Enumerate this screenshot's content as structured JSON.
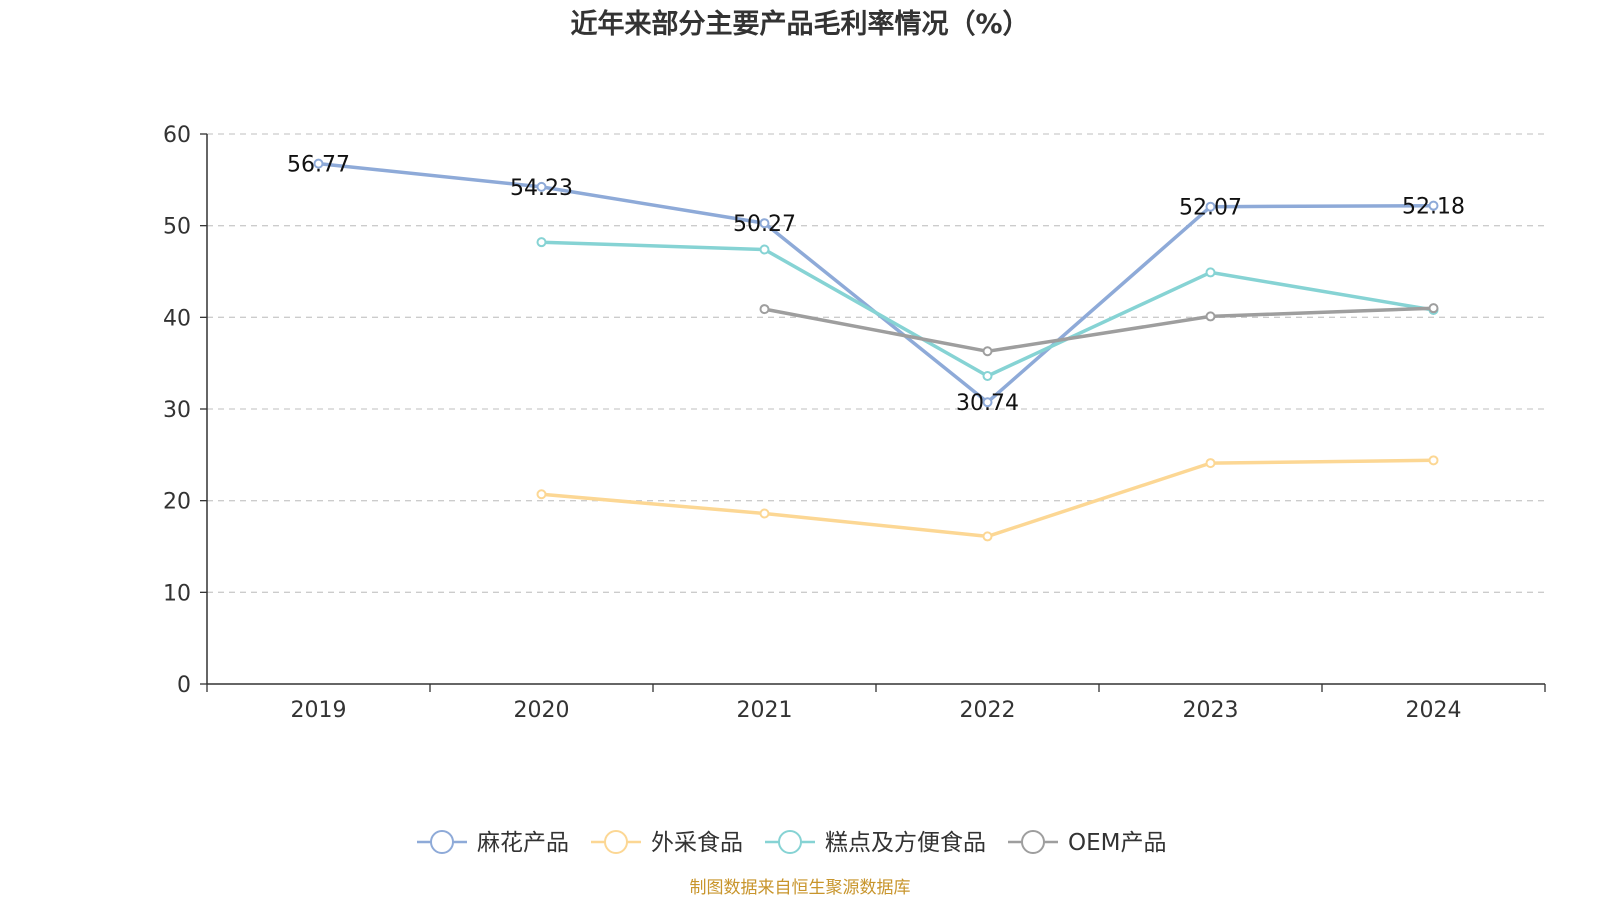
{
  "chart_data": {
    "type": "line",
    "title": "近年来部分主要产品毛利率情况（%）",
    "categories": [
      "2019",
      "2020",
      "2021",
      "2022",
      "2023",
      "2024"
    ],
    "ylim": [
      0,
      60
    ],
    "yticks": [
      0,
      10,
      20,
      30,
      40,
      50,
      60
    ],
    "grid": true,
    "legend_position": "bottom",
    "series": [
      {
        "name": "麻花产品",
        "color": "#8eaad8",
        "values": [
          56.77,
          54.23,
          50.27,
          30.74,
          52.07,
          52.18
        ],
        "show_labels": true
      },
      {
        "name": "外采食品",
        "color": "#fcd794",
        "values": [
          null,
          20.7,
          18.6,
          16.1,
          24.1,
          24.4
        ],
        "show_labels": false
      },
      {
        "name": "糕点及方便食品",
        "color": "#86d3d4",
        "values": [
          null,
          48.2,
          47.4,
          33.6,
          44.9,
          40.8
        ],
        "show_labels": false
      },
      {
        "name": "OEM产品",
        "color": "#9e9e9e",
        "values": [
          null,
          null,
          40.9,
          36.3,
          40.1,
          41.0
        ],
        "show_labels": false
      }
    ],
    "source_note": "制图数据来自恒生聚源数据库",
    "source_color": "#c8952c"
  }
}
